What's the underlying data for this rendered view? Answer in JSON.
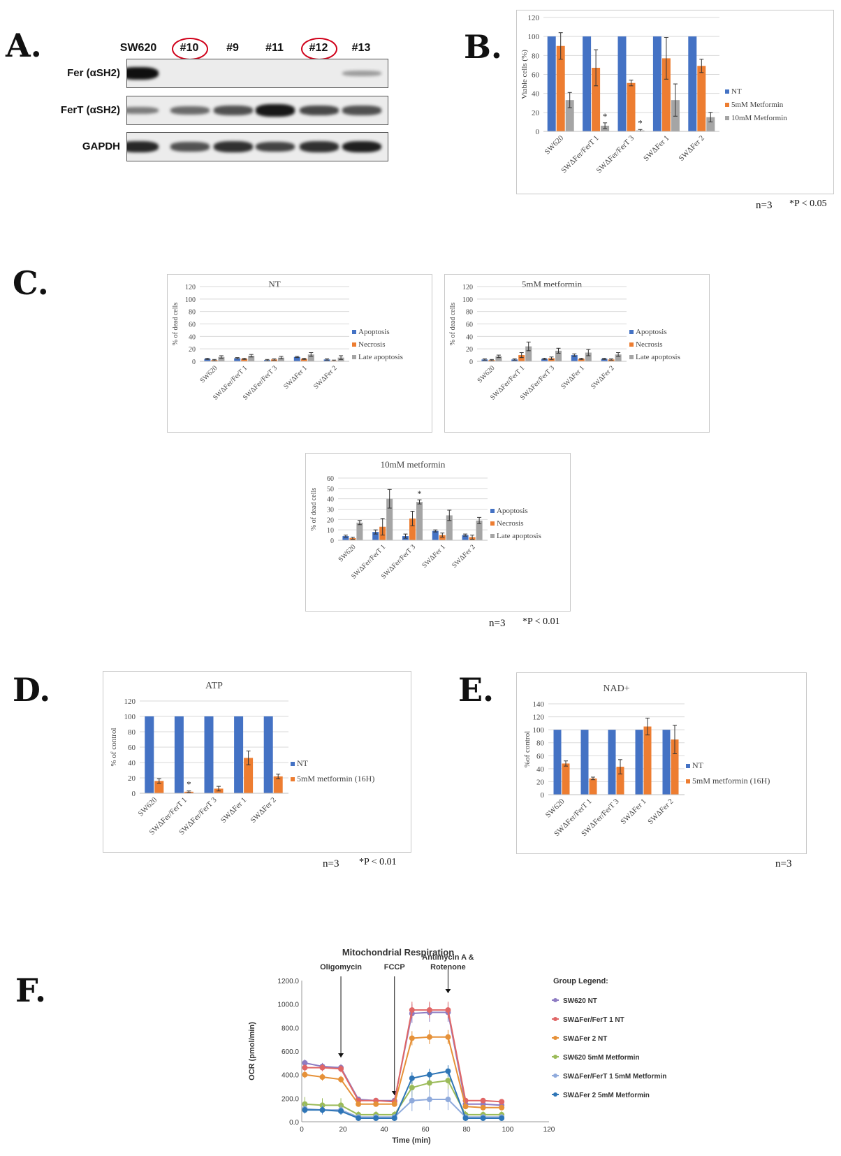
{
  "panel_labels": {
    "A": "A.",
    "B": "B.",
    "C": "C.",
    "D": "D.",
    "E": "E.",
    "F": "F."
  },
  "colors": {
    "blue": "#4472C4",
    "orange": "#ED7D31",
    "gray": "#A5A5A5",
    "circle": "#D0021B"
  },
  "blot": {
    "lanes": [
      "SW620",
      "#10",
      "#9",
      "#11",
      "#12",
      "#13"
    ],
    "circled": [
      false,
      true,
      false,
      false,
      true,
      false
    ],
    "rows": [
      "Fer (αSH2)",
      "FerT (αSH2)",
      "GAPDH"
    ],
    "row_intensity": [
      [
        1.0,
        0,
        0,
        0,
        0,
        0.15
      ],
      [
        0.35,
        0.45,
        0.6,
        0.95,
        0.65,
        0.6
      ],
      [
        0.85,
        0.6,
        0.8,
        0.7,
        0.8,
        0.9
      ]
    ]
  },
  "notes": {
    "b": "n=3",
    "b_p": "*P < 0.05",
    "c": "n=3",
    "c_p": "*P < 0.01",
    "d": "n=3",
    "d_p": "*P < 0.01",
    "e": "n=3"
  },
  "chart_data": [
    {
      "id": "B",
      "type": "bar",
      "title": "",
      "ylabel": "Viable cells (%)",
      "ylim": [
        0,
        120
      ],
      "yticks": [
        0,
        20,
        40,
        60,
        80,
        100,
        120
      ],
      "categories": [
        "SW620",
        "SWΔFer/FerT 1",
        "SWΔFer/FerT 3",
        "SWΔFer 1",
        "SWΔFer 2"
      ],
      "series": [
        {
          "name": "NT",
          "color": "#4472C4",
          "values": [
            100,
            100,
            100,
            100,
            100
          ],
          "errors": [
            0,
            0,
            0,
            0,
            0
          ]
        },
        {
          "name": "5mM Metformin",
          "color": "#ED7D31",
          "values": [
            90,
            67,
            51,
            77,
            69
          ],
          "errors": [
            14,
            19,
            3,
            22,
            7
          ]
        },
        {
          "name": "10mM Metformin",
          "color": "#A5A5A5",
          "values": [
            33,
            6,
            1,
            33,
            15
          ],
          "errors": [
            8,
            3,
            1,
            17,
            5
          ]
        }
      ],
      "stars": [
        {
          "series": 2,
          "category": 1,
          "label": "*"
        },
        {
          "series": 2,
          "category": 2,
          "label": "*"
        }
      ]
    },
    {
      "id": "C1",
      "type": "bar",
      "title": "NT",
      "ylabel": "% of dead cells",
      "ylim": [
        0,
        120
      ],
      "yticks": [
        0,
        20,
        40,
        60,
        80,
        100,
        120
      ],
      "categories": [
        "SW620",
        "SWΔFer/FerT 1",
        "SWΔFer/FerT 3",
        "SWΔFer 1",
        "SWΔFer 2"
      ],
      "series": [
        {
          "name": "Apoptosis",
          "color": "#4472C4",
          "values": [
            4,
            5,
            2,
            7,
            3
          ],
          "errors": [
            1,
            1,
            1,
            1,
            1
          ]
        },
        {
          "name": "Necrosis",
          "color": "#ED7D31",
          "values": [
            2,
            4,
            3,
            4,
            1
          ],
          "errors": [
            1,
            1,
            1,
            1,
            1
          ]
        },
        {
          "name": "Late apoptosis",
          "color": "#A5A5A5",
          "values": [
            7,
            9,
            6,
            11,
            6
          ],
          "errors": [
            2,
            2,
            2,
            3,
            3
          ]
        }
      ],
      "stars": []
    },
    {
      "id": "C2",
      "type": "bar",
      "title": "5mM metformin",
      "ylabel": "% of dead cells",
      "ylim": [
        0,
        120
      ],
      "yticks": [
        0,
        20,
        40,
        60,
        80,
        100,
        120
      ],
      "categories": [
        "SW620",
        "SWΔFer/FerT 1",
        "SWΔFer/FerT 3",
        "SWΔFer 1",
        "SWΔFer 2"
      ],
      "series": [
        {
          "name": "Apoptosis",
          "color": "#4472C4",
          "values": [
            3,
            3,
            4,
            10,
            4
          ],
          "errors": [
            1,
            1,
            1,
            2,
            1
          ]
        },
        {
          "name": "Necrosis",
          "color": "#ED7D31",
          "values": [
            2,
            10,
            5,
            4,
            3
          ],
          "errors": [
            1,
            4,
            2,
            1,
            1
          ]
        },
        {
          "name": "Late apoptosis",
          "color": "#A5A5A5",
          "values": [
            8,
            24,
            17,
            14,
            11
          ],
          "errors": [
            2,
            7,
            4,
            5,
            3
          ]
        }
      ],
      "stars": []
    },
    {
      "id": "C3",
      "type": "bar",
      "title": "10mM metformin",
      "ylabel": "% of dead cells",
      "ylim": [
        0,
        60
      ],
      "yticks": [
        0,
        10,
        20,
        30,
        40,
        50,
        60
      ],
      "categories": [
        "SW620",
        "SWΔFer/FerT 1",
        "SWΔFer/FerT 3",
        "SWΔFer 1",
        "SWΔFer 2"
      ],
      "series": [
        {
          "name": "Apoptosis",
          "color": "#4472C4",
          "values": [
            4,
            8,
            4,
            9,
            5
          ],
          "errors": [
            1,
            2,
            2,
            1,
            1
          ]
        },
        {
          "name": "Necrosis",
          "color": "#ED7D31",
          "values": [
            2,
            13,
            21,
            5,
            3
          ],
          "errors": [
            1,
            8,
            7,
            2,
            2
          ]
        },
        {
          "name": "Late apoptosis",
          "color": "#A5A5A5",
          "values": [
            17,
            40,
            37,
            24,
            19
          ],
          "errors": [
            2,
            9,
            2,
            5,
            3
          ]
        }
      ],
      "stars": [
        {
          "series": 2,
          "category": 2,
          "label": "*"
        }
      ]
    },
    {
      "id": "D",
      "type": "bar",
      "title": "ATP",
      "ylabel": "% of control",
      "ylim": [
        0,
        120
      ],
      "yticks": [
        0,
        20,
        40,
        60,
        80,
        100,
        120
      ],
      "categories": [
        "SW620",
        "SWΔFer/FerT 1",
        "SWΔFer/FerT 3",
        "SWΔFer 1",
        "SWΔFer 2"
      ],
      "series": [
        {
          "name": "NT",
          "color": "#4472C4",
          "values": [
            100,
            100,
            100,
            100,
            100
          ],
          "errors": [
            0,
            0,
            0,
            0,
            0
          ]
        },
        {
          "name": "5mM metformin (16H)",
          "color": "#ED7D31",
          "values": [
            16,
            2,
            6,
            46,
            22
          ],
          "errors": [
            3,
            1,
            3,
            9,
            3
          ]
        }
      ],
      "stars": [
        {
          "series": 1,
          "category": 1,
          "label": "*"
        }
      ]
    },
    {
      "id": "E",
      "type": "bar",
      "title": "NAD+",
      "ylabel": "%of control",
      "ylim": [
        0,
        140
      ],
      "yticks": [
        0,
        20,
        40,
        60,
        80,
        100,
        120,
        140
      ],
      "categories": [
        "SW620",
        "SWΔFer/FerT 1",
        "SWΔFer/FerT 3",
        "SWΔFer 1",
        "SWΔFer 2"
      ],
      "series": [
        {
          "name": "NT",
          "color": "#4472C4",
          "values": [
            100,
            100,
            100,
            100,
            100
          ],
          "errors": [
            0,
            0,
            0,
            0,
            0
          ]
        },
        {
          "name": "5mM metformin (16H)",
          "color": "#ED7D31",
          "values": [
            48,
            25,
            43,
            105,
            85
          ],
          "errors": [
            4,
            2,
            11,
            13,
            22
          ]
        }
      ],
      "stars": []
    },
    {
      "id": "F",
      "type": "line",
      "title": "Mitochondrial Respiration",
      "xlabel": "Time (min)",
      "ylabel": "OCR (pmol/min)",
      "xlim": [
        0,
        120
      ],
      "ylim": [
        0,
        1200
      ],
      "xticks": [
        0,
        20,
        40,
        60,
        80,
        100,
        120
      ],
      "yticks": [
        "0.0",
        "200.0",
        "400.0",
        "600.0",
        "800.0",
        "1000.0",
        "1200.0"
      ],
      "legend_title": "Group Legend:",
      "injections": [
        {
          "label": "Oligomycin",
          "x": 19
        },
        {
          "label": "FCCP",
          "x": 45
        },
        {
          "label": "Antimycin A & Rotenone",
          "x": 71
        }
      ],
      "x": [
        1.5,
        10,
        19,
        27.5,
        36,
        45,
        53.5,
        62,
        71,
        79.5,
        88,
        97
      ],
      "series": [
        {
          "name": "SW620 NT",
          "color": "#8E7CC3",
          "values": [
            500,
            470,
            460,
            190,
            180,
            180,
            920,
            930,
            930,
            150,
            150,
            140
          ],
          "errors": [
            30,
            30,
            30,
            20,
            20,
            20,
            80,
            80,
            80,
            20,
            20,
            20
          ]
        },
        {
          "name": "SWΔFer/FerT 1 NT",
          "color": "#E06666",
          "values": [
            460,
            460,
            450,
            180,
            180,
            170,
            950,
            950,
            950,
            180,
            180,
            170
          ],
          "errors": [
            30,
            30,
            30,
            20,
            20,
            20,
            70,
            70,
            70,
            20,
            20,
            20
          ]
        },
        {
          "name": "SWΔFer 2 NT",
          "color": "#E69138",
          "values": [
            400,
            380,
            360,
            150,
            150,
            150,
            710,
            720,
            720,
            130,
            120,
            120
          ],
          "errors": [
            30,
            30,
            30,
            20,
            20,
            20,
            60,
            60,
            60,
            20,
            20,
            20
          ]
        },
        {
          "name": "SW620 5mM Metformin",
          "color": "#9BBB59",
          "values": [
            150,
            140,
            140,
            60,
            60,
            60,
            290,
            330,
            350,
            60,
            60,
            60
          ],
          "errors": [
            60,
            60,
            60,
            30,
            30,
            30,
            80,
            80,
            80,
            30,
            30,
            30
          ]
        },
        {
          "name": "SWΔFer/FerT 1 5mM Metformin",
          "color": "#8FAADC",
          "values": [
            110,
            100,
            100,
            40,
            40,
            40,
            180,
            190,
            190,
            40,
            40,
            40
          ],
          "errors": [
            40,
            40,
            40,
            20,
            20,
            20,
            90,
            90,
            90,
            20,
            20,
            20
          ]
        },
        {
          "name": "SWΔFer 2 5mM Metformin",
          "color": "#2E75B6",
          "values": [
            100,
            100,
            90,
            30,
            30,
            30,
            370,
            400,
            430,
            30,
            30,
            30
          ],
          "errors": [
            30,
            30,
            30,
            20,
            20,
            20,
            50,
            50,
            50,
            20,
            20,
            20
          ]
        }
      ]
    }
  ]
}
